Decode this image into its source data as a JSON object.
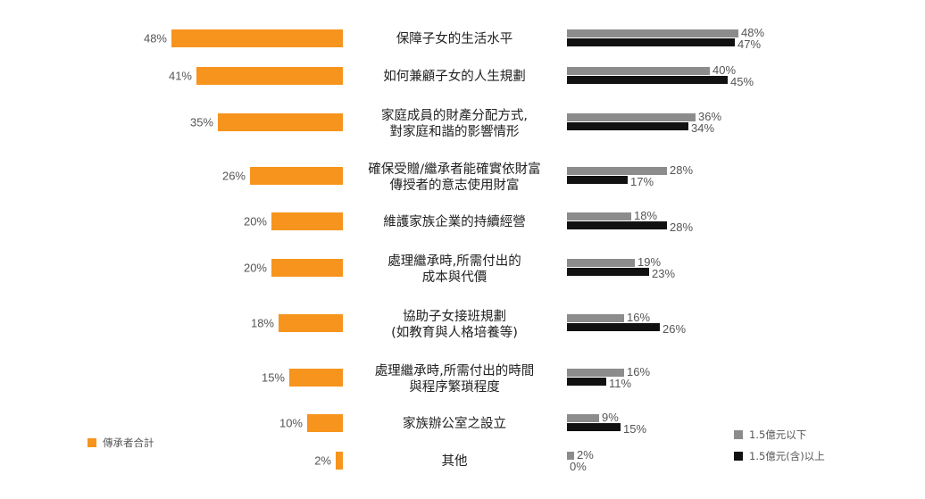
{
  "chart_data": {
    "type": "bar",
    "title": "",
    "xlabel": "",
    "ylabel": "",
    "value_unit": "%",
    "categories": [
      [
        "保障子女的生活水平"
      ],
      [
        "如何兼顧子女的人生規劃"
      ],
      [
        "家庭成員的財產分配方式,",
        "對家庭和諧的影響情形"
      ],
      [
        "確保受贈/繼承者能確實依財富",
        "傳授者的意志使用財富"
      ],
      [
        "維護家族企業的持續經營"
      ],
      [
        "處理繼承時,所需付出的",
        "成本與代價"
      ],
      [
        "協助子女接班規劃",
        "(如教育與人格培養等)"
      ],
      [
        "處理繼承時,所需付出的時間",
        "與程序繁瑣程度"
      ],
      [
        "家族辦公室之設立"
      ],
      [
        "其他"
      ]
    ],
    "series": [
      {
        "name": "傳承者合計",
        "color": "#F7941D",
        "values": [
          48,
          41,
          35,
          26,
          20,
          20,
          18,
          15,
          10,
          2
        ]
      },
      {
        "name": "1.5億元以下",
        "color": "#8C8C8C",
        "values": [
          48,
          40,
          36,
          28,
          18,
          19,
          16,
          16,
          9,
          2
        ]
      },
      {
        "name": "1.5億元(含)以上",
        "color": "#111111",
        "values": [
          47,
          45,
          34,
          17,
          28,
          23,
          26,
          11,
          15,
          0
        ]
      }
    ],
    "legend": {
      "left_panel": "bottom-left",
      "right_panel": "bottom-right"
    },
    "grid": false
  }
}
